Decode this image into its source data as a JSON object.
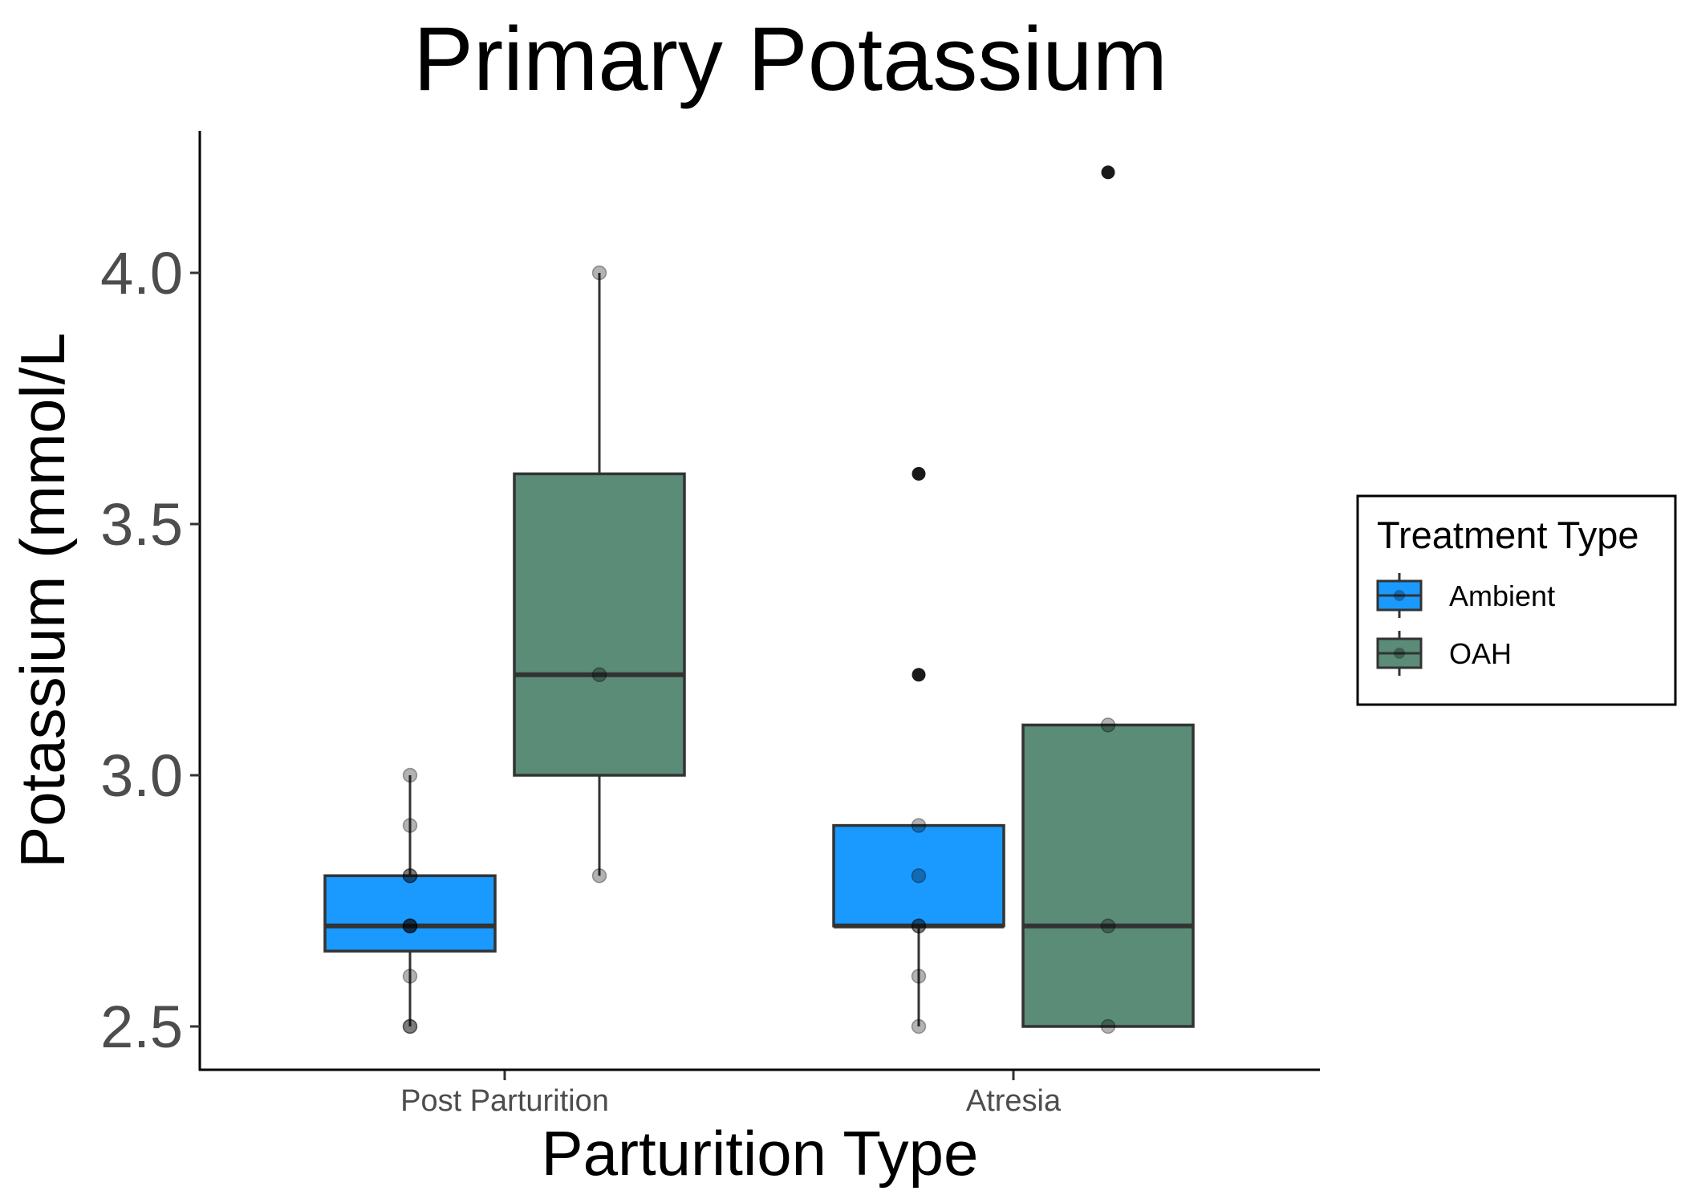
{
  "chart_data": {
    "type": "box",
    "title": "Primary Potassium",
    "xlabel": "Parturition Type",
    "ylabel": "Potassium (mmol/L",
    "categories": [
      "Post Parturition",
      "Atresia"
    ],
    "ylim": [
      2.42,
      4.28
    ],
    "yticks": [
      2.5,
      3.0,
      3.5,
      4.0
    ],
    "ytick_labels": [
      "2.5",
      "3.0",
      "3.5",
      "4.0"
    ],
    "grid": false,
    "legend": {
      "title": "Treatment Type",
      "position": "right",
      "entries": [
        "Ambient",
        "OAH"
      ]
    },
    "colors": {
      "Ambient": "#1a9aff",
      "OAH": "#5a8c78",
      "box_stroke": "#333333",
      "point": "#000000"
    },
    "series": [
      {
        "name": "Ambient",
        "boxes": [
          {
            "category": "Post Parturition",
            "whisker_low": 2.5,
            "q1": 2.65,
            "median": 2.7,
            "q3": 2.8,
            "whisker_high": 3.0,
            "outliers": []
          },
          {
            "category": "Atresia",
            "whisker_low": 2.5,
            "q1": 2.7,
            "median": 2.7,
            "q3": 2.9,
            "whisker_high": 2.9,
            "outliers": [
              3.2,
              3.6
            ]
          }
        ],
        "points": [
          {
            "category": "Post Parturition",
            "values": [
              2.5,
              2.5,
              2.6,
              2.7,
              2.7,
              2.7,
              2.8,
              2.8,
              2.9,
              3.0
            ]
          },
          {
            "category": "Atresia",
            "values": [
              2.5,
              2.6,
              2.7,
              2.7,
              2.8,
              2.9
            ]
          }
        ]
      },
      {
        "name": "OAH",
        "boxes": [
          {
            "category": "Post Parturition",
            "whisker_low": 2.8,
            "q1": 3.0,
            "median": 3.2,
            "q3": 3.6,
            "whisker_high": 4.0,
            "outliers": []
          },
          {
            "category": "Atresia",
            "whisker_low": 2.5,
            "q1": 2.5,
            "median": 2.7,
            "q3": 3.1,
            "whisker_high": 3.1,
            "outliers": [
              4.2
            ]
          }
        ],
        "points": [
          {
            "category": "Post Parturition",
            "values": [
              2.8,
              3.2,
              4.0
            ]
          },
          {
            "category": "Atresia",
            "values": [
              2.5,
              2.7,
              3.1
            ]
          }
        ]
      }
    ]
  }
}
